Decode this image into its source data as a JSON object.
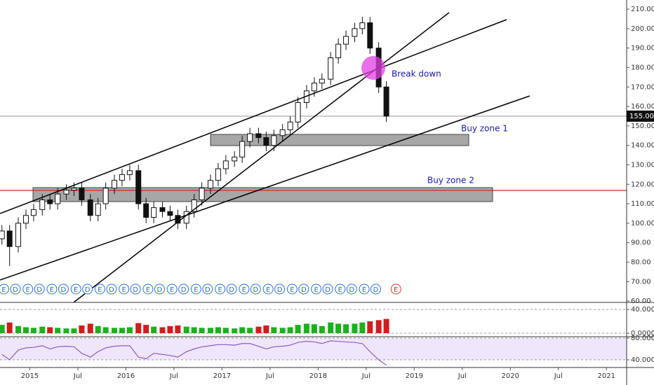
{
  "chart_data": [
    {
      "type": "candlestick",
      "x": [
        2014.71,
        2014.79,
        2014.88,
        2014.96,
        2015.04,
        2015.13,
        2015.21,
        2015.29,
        2015.38,
        2015.46,
        2015.54,
        2015.63,
        2015.71,
        2015.79,
        2015.88,
        2015.96,
        2016.04,
        2016.13,
        2016.21,
        2016.29,
        2016.38,
        2016.46,
        2016.54,
        2016.63,
        2016.71,
        2016.79,
        2016.88,
        2016.96,
        2017.04,
        2017.13,
        2017.21,
        2017.29,
        2017.38,
        2017.46,
        2017.54,
        2017.63,
        2017.71,
        2017.79,
        2017.88,
        2017.96,
        2018.04,
        2018.13,
        2018.21,
        2018.29,
        2018.38,
        2018.46,
        2018.54,
        2018.63,
        2018.71
      ],
      "open": [
        92,
        96,
        88,
        100,
        104,
        107,
        112,
        110,
        115,
        117,
        118,
        112,
        104,
        110,
        118,
        122,
        125,
        127,
        110,
        103,
        108,
        106,
        104,
        100,
        106,
        112,
        118,
        122,
        128,
        132,
        134,
        142,
        146,
        144,
        140,
        145,
        148,
        152,
        162,
        168,
        172,
        174,
        185,
        192,
        196,
        200,
        203,
        190,
        170
      ],
      "high": [
        99,
        99,
        103,
        107,
        110,
        115,
        115,
        118,
        120,
        121,
        121,
        115,
        113,
        121,
        125,
        128,
        130,
        130,
        113,
        111,
        111,
        109,
        107,
        109,
        115,
        121,
        125,
        131,
        135,
        137,
        145,
        149,
        149,
        147,
        148,
        151,
        155,
        165,
        171,
        175,
        177,
        188,
        195,
        199,
        203,
        206,
        206,
        193,
        173
      ],
      "low": [
        89,
        78,
        85,
        97,
        101,
        104,
        107,
        107,
        112,
        114,
        109,
        101,
        101,
        107,
        115,
        119,
        122,
        107,
        100,
        100,
        103,
        101,
        97,
        97,
        103,
        109,
        115,
        119,
        125,
        129,
        131,
        139,
        141,
        137,
        137,
        142,
        145,
        149,
        159,
        165,
        169,
        171,
        182,
        189,
        193,
        197,
        187,
        167,
        152
      ],
      "close": [
        96,
        88,
        100,
        104,
        107,
        112,
        110,
        115,
        117,
        118,
        112,
        104,
        110,
        118,
        122,
        125,
        127,
        110,
        103,
        108,
        106,
        104,
        100,
        106,
        112,
        118,
        122,
        128,
        132,
        134,
        142,
        146,
        144,
        140,
        145,
        148,
        152,
        162,
        168,
        172,
        174,
        185,
        192,
        196,
        200,
        203,
        190,
        170,
        155
      ],
      "xlim": [
        2014.69,
        2021.21
      ],
      "xticks": [
        {
          "value": 2015,
          "label": "2015"
        },
        {
          "value": 2015.5,
          "label": "Jul"
        },
        {
          "value": 2016,
          "label": "2016"
        },
        {
          "value": 2016.5,
          "label": "Jul"
        },
        {
          "value": 2017,
          "label": "2017"
        },
        {
          "value": 2017.5,
          "label": "Jul"
        },
        {
          "value": 2018,
          "label": "2018"
        },
        {
          "value": 2018.5,
          "label": "Jul"
        },
        {
          "value": 2019,
          "label": "2019"
        },
        {
          "value": 2019.5,
          "label": "Jul"
        },
        {
          "value": 2020,
          "label": "2020"
        },
        {
          "value": 2020.5,
          "label": "Jul"
        },
        {
          "value": 2021,
          "label": "2021"
        }
      ],
      "ylim": [
        59.3,
        214.7
      ],
      "yticks": [
        {
          "value": 60,
          "label": "60.00"
        },
        {
          "value": 70,
          "label": "70.00"
        },
        {
          "value": 80,
          "label": "80.00"
        },
        {
          "value": 90,
          "label": "90.00"
        },
        {
          "value": 100,
          "label": "100.00"
        },
        {
          "value": 110,
          "label": "110.00"
        },
        {
          "value": 120,
          "label": "120.00"
        },
        {
          "value": 130,
          "label": "130.00"
        },
        {
          "value": 140,
          "label": "140.00"
        },
        {
          "value": 150,
          "label": "150.00"
        },
        {
          "value": 160,
          "label": "160.00"
        },
        {
          "value": 170,
          "label": "170.00"
        },
        {
          "value": 180,
          "label": "180.00"
        },
        {
          "value": 190,
          "label": "190.00"
        },
        {
          "value": 200,
          "label": "200.00"
        },
        {
          "value": 210,
          "label": "210.00"
        }
      ],
      "last_price": {
        "value": 155,
        "label": "155.00"
      },
      "annotations": [
        "Break down",
        "Buy zone 1",
        "Buy zone 2"
      ],
      "earnings": {
        "label": "E",
        "x": [
          2014.73,
          2014.98,
          2015.23,
          2015.48,
          2015.73,
          2015.98,
          2016.23,
          2016.48,
          2016.73,
          2016.98,
          2017.23,
          2017.48,
          2017.73,
          2017.98,
          2018.23,
          2018.48,
          2018.81
        ]
      },
      "dividends": {
        "label": "D",
        "x": [
          2014.85,
          2015.1,
          2015.35,
          2015.6,
          2015.85,
          2016.1,
          2016.35,
          2016.6,
          2016.85,
          2017.1,
          2017.35,
          2017.6,
          2017.85,
          2018.1,
          2018.35,
          2018.6
        ]
      }
    },
    {
      "type": "bar",
      "x": [
        2014.71,
        2014.79,
        2014.88,
        2014.96,
        2015.04,
        2015.13,
        2015.21,
        2015.29,
        2015.38,
        2015.46,
        2015.54,
        2015.63,
        2015.71,
        2015.79,
        2015.88,
        2015.96,
        2016.04,
        2016.13,
        2016.21,
        2016.29,
        2016.38,
        2016.46,
        2016.54,
        2016.63,
        2016.71,
        2016.79,
        2016.88,
        2016.96,
        2017.04,
        2017.13,
        2017.21,
        2017.29,
        2017.38,
        2017.46,
        2017.54,
        2017.63,
        2017.71,
        2017.79,
        2017.88,
        2017.96,
        2018.04,
        2018.13,
        2018.21,
        2018.29,
        2018.38,
        2018.46,
        2018.54,
        2018.63,
        2018.71
      ],
      "values": [
        14,
        18,
        12,
        10,
        9,
        11,
        10,
        9,
        8,
        8,
        13,
        16,
        12,
        10,
        9,
        9,
        10,
        17,
        14,
        11,
        10,
        12,
        13,
        11,
        10,
        9,
        9,
        10,
        9,
        8,
        10,
        9,
        11,
        13,
        10,
        9,
        10,
        14,
        16,
        15,
        12,
        18,
        16,
        15,
        16,
        18,
        20,
        22,
        24
      ],
      "up_color": "#1fae1f",
      "down_color": "#cc1f1f",
      "ylim": [
        -5.9,
        51.8
      ],
      "yticks": [
        {
          "value": 40,
          "label": "40.000"
        },
        {
          "value": 0,
          "label": "0.0000"
        }
      ]
    },
    {
      "type": "line",
      "x": [
        2014.71,
        2014.79,
        2014.88,
        2014.96,
        2015.04,
        2015.13,
        2015.21,
        2015.29,
        2015.38,
        2015.46,
        2015.54,
        2015.63,
        2015.71,
        2015.79,
        2015.88,
        2015.96,
        2016.04,
        2016.13,
        2016.21,
        2016.29,
        2016.38,
        2016.46,
        2016.54,
        2016.63,
        2016.71,
        2016.79,
        2016.88,
        2016.96,
        2017.04,
        2017.13,
        2017.21,
        2017.29,
        2017.38,
        2017.46,
        2017.54,
        2017.63,
        2017.71,
        2017.79,
        2017.88,
        2017.96,
        2018.04,
        2018.13,
        2018.21,
        2018.29,
        2018.38,
        2018.46,
        2018.54,
        2018.63,
        2018.71
      ],
      "values": [
        50,
        40,
        58,
        62,
        63,
        66,
        60,
        64,
        65,
        64,
        52,
        45,
        55,
        62,
        65,
        66,
        66,
        45,
        42,
        52,
        50,
        48,
        45,
        55,
        60,
        64,
        66,
        68,
        68,
        67,
        70,
        70,
        65,
        60,
        64,
        65,
        67,
        72,
        74,
        73,
        70,
        75,
        74,
        73,
        72,
        70,
        55,
        40,
        30
      ],
      "color": "#8e5bc4",
      "ylim": [
        25.8,
        82.6
      ],
      "yticks": [
        {
          "value": 80,
          "label": "80.0000"
        },
        {
          "value": 40,
          "label": "40.0000"
        }
      ]
    }
  ]
}
